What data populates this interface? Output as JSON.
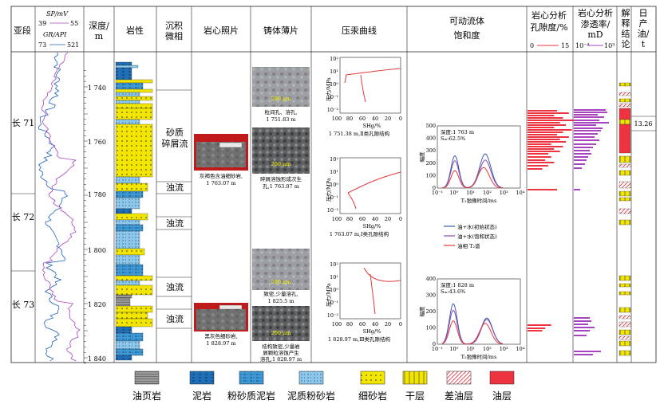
{
  "columns": {
    "sub_segment": "亚段",
    "logs": {
      "sp_label": "SP/mV",
      "sp_min": "39",
      "sp_max": "55",
      "gr_label": "GR/API",
      "gr_min": "73",
      "gr_max": "521"
    },
    "depth": [
      "深度/",
      "m"
    ],
    "lithology": "岩性",
    "facies": [
      "沉积",
      "微相"
    ],
    "core_photo": "岩心照片",
    "thin_section": "铸体薄片",
    "mercury": "压汞曲线",
    "nmr": [
      "可动流体",
      "饱和度"
    ],
    "porosity": {
      "title": [
        "岩心分析",
        "孔隙度/%"
      ],
      "min": "0",
      "max": "15"
    },
    "permeability": {
      "title": [
        "岩心分析",
        "渗透率/",
        "mD"
      ],
      "min": "10⁻⁴",
      "max": "10³"
    },
    "interpretation": [
      "解",
      "释",
      "结",
      "论"
    ],
    "daily_oil": [
      "日",
      "产",
      "油/",
      "t"
    ]
  },
  "sub_segments": [
    "长 71",
    "长 72",
    "长 73"
  ],
  "depth_ticks": [
    "1 740",
    "1 760",
    "1 780",
    "1 800",
    "1 820",
    "1 840"
  ],
  "facies_labels": [
    "砂质",
    "碎屑流",
    "浊流",
    "浊流",
    "浊流",
    "浊流"
  ],
  "core_captions": [
    "灰褐色含油细砂岩,",
    "1 763.07 m",
    "黑灰色细砂岩,",
    "1 828.97 m"
  ],
  "thin_captions": [
    "粒间孔、溶孔,",
    "1 751.83 m",
    "碎屑溶蚀形成次生",
    "孔,1 763.07 m",
    "致密,少量溶孔,",
    "1 825.5 m",
    "结构致密,少量岩",
    "屑颗粒溶蚀产生",
    "溶孔,1 828.97 m"
  ],
  "scale_label": "200 μm",
  "mercury_captions": [
    "1 751.38 m,Ⅱ类孔隙结构",
    "1 763.07 m,Ⅰ类孔隙结构",
    "1 828.97 m,Ⅲ类孔隙结构"
  ],
  "mercury_axes": {
    "ylabel": "压力/MPa",
    "xlabel": "SHg/%",
    "x_ticks": [
      "100",
      "80",
      "60",
      "40",
      "20",
      "0"
    ],
    "y_ticks": [
      "10²",
      "10¹",
      "10⁰",
      "10⁻¹",
      "10⁻²"
    ]
  },
  "nmr_charts": [
    {
      "depth": "深度:1 763 m",
      "sat": "Sₘ:62.5%"
    },
    {
      "depth": "深度:1 828 m",
      "sat": "Sₘ:43.6%"
    }
  ],
  "nmr_axes": {
    "ylabel": "幅度",
    "xlabel": "T₂弛豫时间/ms",
    "y1": [
      "0",
      "50",
      "100",
      "150",
      "200",
      "250",
      "300",
      "350",
      "400",
      "450",
      "500"
    ],
    "y2": [
      "0",
      "50",
      "100",
      "150",
      "200",
      "250",
      "300",
      "350",
      "400"
    ],
    "x_ticks": [
      "10⁻¹",
      "10⁰",
      "10¹",
      "10²",
      "10³",
      "10⁴"
    ]
  },
  "nmr_legend": [
    "油+水(初始状态)",
    "油+水(饱和状态)",
    "油相 T₂谱"
  ],
  "daily_oil_value": "13.26",
  "legend": [
    "油页岩",
    "泥岩",
    "粉砂质泥岩",
    "泥质粉砂岩",
    "细砂岩",
    "干层",
    "差油层",
    "油层"
  ],
  "colors": {
    "mudstone": "#1f6fb8",
    "silty_mud": "#3d9ad6",
    "muddy_silt": "#8cc8ee",
    "sandstone": "#f2e600",
    "oil_shale": "#9a9a9a",
    "oil": "#ee3340",
    "poor_oil": "#ee3340",
    "dry": "#f2e600",
    "sp": "#1f5fbf",
    "gr": "#a844c0",
    "nmr_initial": "#3a5ca8",
    "nmr_saturated": "#8a4cb0",
    "nmr_oil": "#e03a3a",
    "hg_curve": "#e03a3a"
  }
}
